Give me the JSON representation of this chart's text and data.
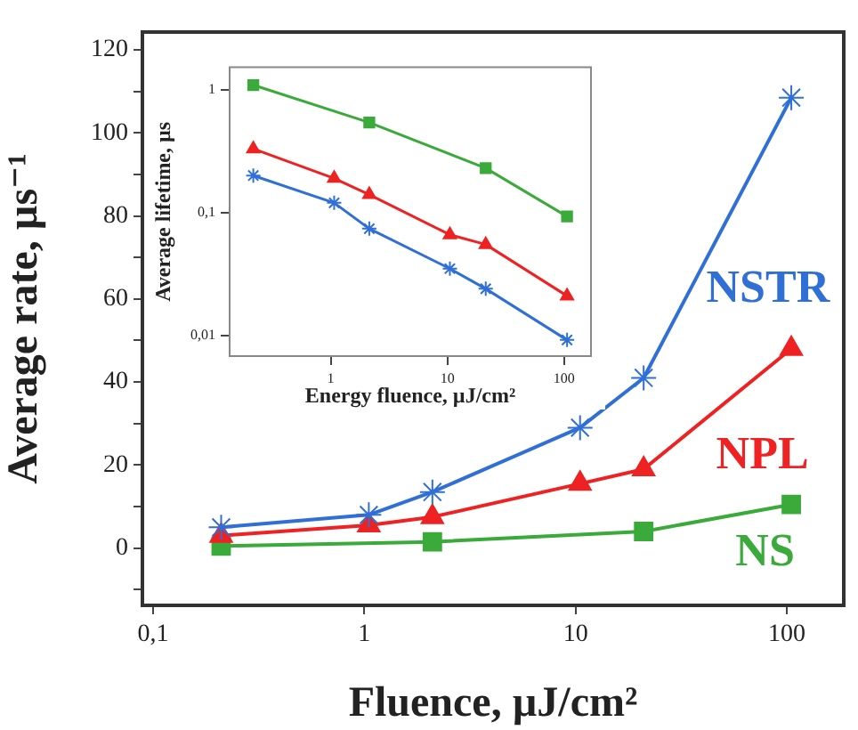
{
  "chart_data": [
    {
      "type": "line",
      "xlabel": "Fluence, µJ/cm²",
      "ylabel": "Average rate, µs⁻¹",
      "log": "x",
      "grid": false,
      "legend": false,
      "xlim": [
        0.089,
        186
      ],
      "xticks": [
        {
          "value": 0.1,
          "label": "0,1"
        },
        1,
        10,
        100
      ],
      "ylim": [
        -13.8,
        124.3
      ],
      "yticks": [
        {
          "value": -10,
          "label": null
        },
        0,
        {
          "value": 10,
          "label": null
        },
        20,
        {
          "value": 30,
          "label": null
        },
        40,
        {
          "value": 50,
          "label": null
        },
        60,
        {
          "value": 70,
          "label": null
        },
        80,
        {
          "value": 90,
          "label": null
        },
        100,
        {
          "value": 110,
          "label": null
        },
        120
      ],
      "series": [
        {
          "name": "NSTR",
          "color": "#2f6fd6",
          "marker": "cross",
          "x": [
            0.21,
            1.05,
            2.1,
            10.5,
            21,
            105
          ],
          "values": [
            5,
            8,
            13.5,
            29,
            41,
            108.5
          ]
        },
        {
          "name": "NPL",
          "color": "#ee2222",
          "marker": "triangle",
          "x": [
            0.21,
            1.05,
            2.1,
            10.5,
            21,
            105
          ],
          "values": [
            3,
            5.5,
            7.5,
            15.5,
            19,
            48
          ]
        },
        {
          "name": "NS",
          "color": "#3aaa3a",
          "marker": "square",
          "x": [
            0.21,
            2.1,
            21,
            105
          ],
          "values": [
            0.5,
            1.5,
            4,
            10.5
          ]
        }
      ]
    },
    {
      "type": "line",
      "xlabel": "Energy fluence, µJ/cm²",
      "ylabel": "Average lifetime, µs",
      "log": "xy",
      "grid": false,
      "legend": false,
      "xlim": [
        0.136,
        170
      ],
      "xticks": [
        1,
        10,
        100
      ],
      "ylim": [
        0.0068,
        1.52
      ],
      "yticks": [
        {
          "value": 0.01,
          "label": "0,01"
        },
        {
          "value": 0.1,
          "label": "0,1"
        },
        1
      ],
      "series": [
        {
          "color": "#3aaa3a",
          "marker": "square",
          "x": [
            0.217,
            2.14,
            21.3,
            106
          ],
          "values": [
            1.09,
            0.54,
            0.23,
            0.093
          ]
        },
        {
          "color": "#ee2222",
          "marker": "triangle",
          "x": [
            0.217,
            1.07,
            2.14,
            10.5,
            21.3,
            106
          ],
          "values": [
            0.33,
            0.19,
            0.14,
            0.066,
            0.055,
            0.021
          ]
        },
        {
          "color": "#2f6fd6",
          "marker": "cross",
          "x": [
            0.217,
            1.07,
            2.14,
            10.5,
            21.3,
            106
          ],
          "values": [
            0.2,
            0.12,
            0.074,
            0.035,
            0.024,
            0.0092
          ]
        }
      ]
    }
  ]
}
